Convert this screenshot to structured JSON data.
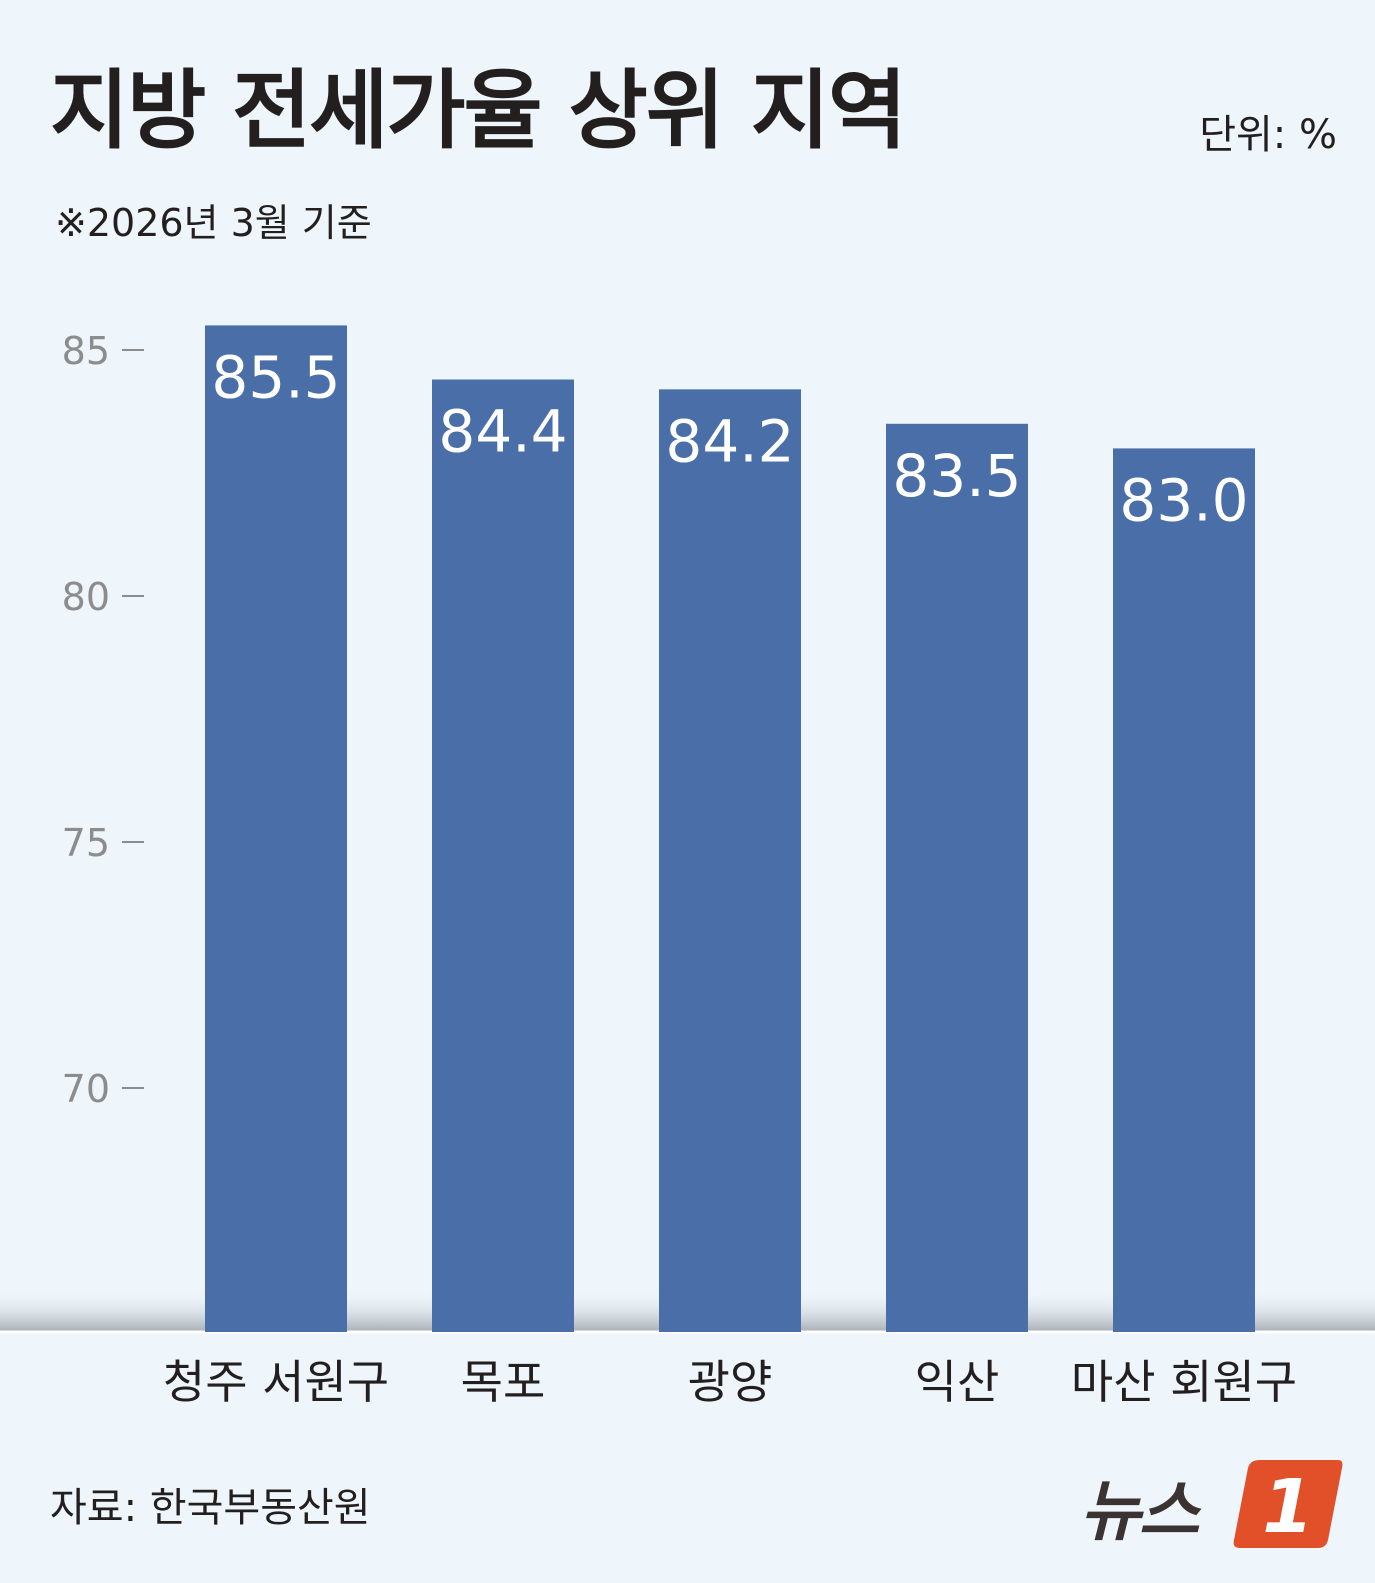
{
  "header": {
    "title": "지방 전세가율 상위 지역",
    "unit": "단위: %",
    "note": "※2026년 3월 기준"
  },
  "footer": {
    "source": "자료: 한국부동산원",
    "logo_text": "뉴스",
    "logo_badge": "1"
  },
  "colors": {
    "bar": "#4a6fa8",
    "background": "#eef5fb",
    "text": "#231f1e",
    "tick": "#8c8c8c",
    "logo_badge": "#e2502a"
  },
  "chart_data": {
    "type": "bar",
    "categories": [
      "청주 서원구",
      "목포",
      "광양",
      "익산",
      "마산 회원구"
    ],
    "values": [
      85.5,
      84.4,
      84.2,
      83.5,
      83.0
    ],
    "value_labels": [
      "85.5",
      "84.4",
      "84.2",
      "83.5",
      "83.0"
    ],
    "yticks": [
      85,
      80,
      75,
      70
    ],
    "ylim": [
      65,
      86
    ],
    "grid": false
  }
}
